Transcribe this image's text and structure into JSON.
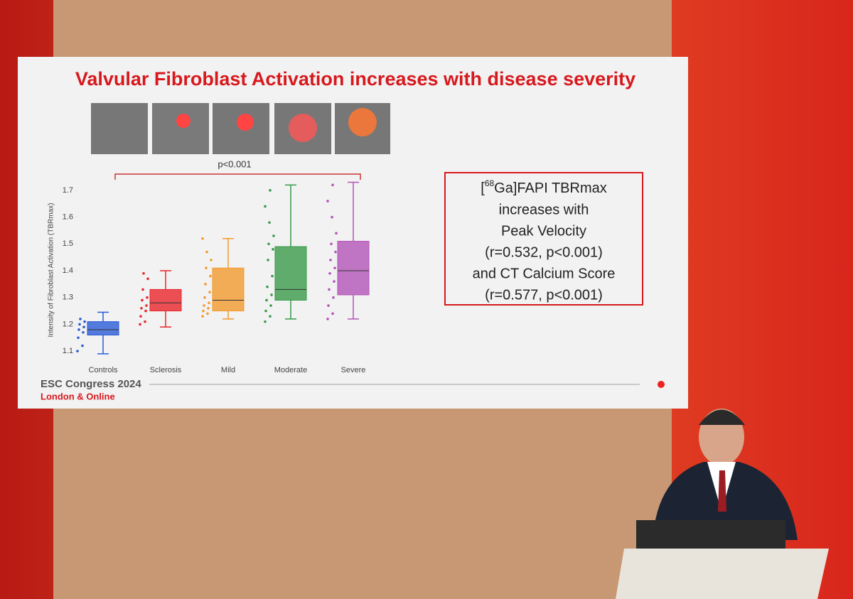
{
  "chart_data": {
    "type": "box",
    "y_label": "Intensity of Fibroblast Activation (TBRmax)",
    "categories": [
      "Controls",
      "Sclerosis",
      "Mild",
      "Moderate",
      "Severe"
    ],
    "boxes": [
      {
        "color": "#2b5bd7",
        "min": 1.09,
        "q1": 1.16,
        "median": 1.18,
        "q3": 1.21,
        "max": 1.245,
        "points": [
          1.1,
          1.12,
          1.15,
          1.17,
          1.18,
          1.19,
          1.2,
          1.21,
          1.22
        ]
      },
      {
        "color": "#e8262b",
        "min": 1.19,
        "q1": 1.25,
        "median": 1.28,
        "q3": 1.33,
        "max": 1.4,
        "points": [
          1.2,
          1.21,
          1.23,
          1.25,
          1.26,
          1.27,
          1.29,
          1.3,
          1.33,
          1.37,
          1.39
        ]
      },
      {
        "color": "#f39a2e",
        "min": 1.22,
        "q1": 1.25,
        "median": 1.29,
        "q3": 1.41,
        "max": 1.52,
        "points": [
          1.23,
          1.24,
          1.25,
          1.26,
          1.27,
          1.28,
          1.3,
          1.32,
          1.35,
          1.38,
          1.41,
          1.44,
          1.47,
          1.52
        ]
      },
      {
        "color": "#3a9a4a",
        "min": 1.22,
        "q1": 1.29,
        "median": 1.33,
        "q3": 1.49,
        "max": 1.72,
        "points": [
          1.21,
          1.23,
          1.25,
          1.27,
          1.29,
          1.31,
          1.34,
          1.38,
          1.44,
          1.48,
          1.5,
          1.53,
          1.58,
          1.64,
          1.7
        ]
      },
      {
        "color": "#b254b8",
        "min": 1.22,
        "q1": 1.31,
        "median": 1.4,
        "q3": 1.51,
        "max": 1.73,
        "points": [
          1.22,
          1.24,
          1.27,
          1.3,
          1.33,
          1.36,
          1.39,
          1.41,
          1.44,
          1.47,
          1.5,
          1.54,
          1.6,
          1.66,
          1.72
        ]
      }
    ],
    "ylim": [
      1.05,
      1.75
    ],
    "yticks": [
      1.1,
      1.2,
      1.3,
      1.4,
      1.5,
      1.6,
      1.7
    ],
    "annotation": "p<0.001"
  },
  "slide": {
    "title": "Valvular Fibroblast Activation increases with disease severity",
    "box_first_open": "[",
    "box_first_sup": "68",
    "box_first_rest": "Ga]FAPI TBRmax",
    "box_lines": [
      "increases with",
      "Peak Velocity",
      "(r=0.532, p<0.001)",
      "and CT Calcium Score",
      "(r=0.577, p<0.001)"
    ],
    "footer_event": "ESC Congress 2024",
    "footer_place": "London & Online"
  }
}
